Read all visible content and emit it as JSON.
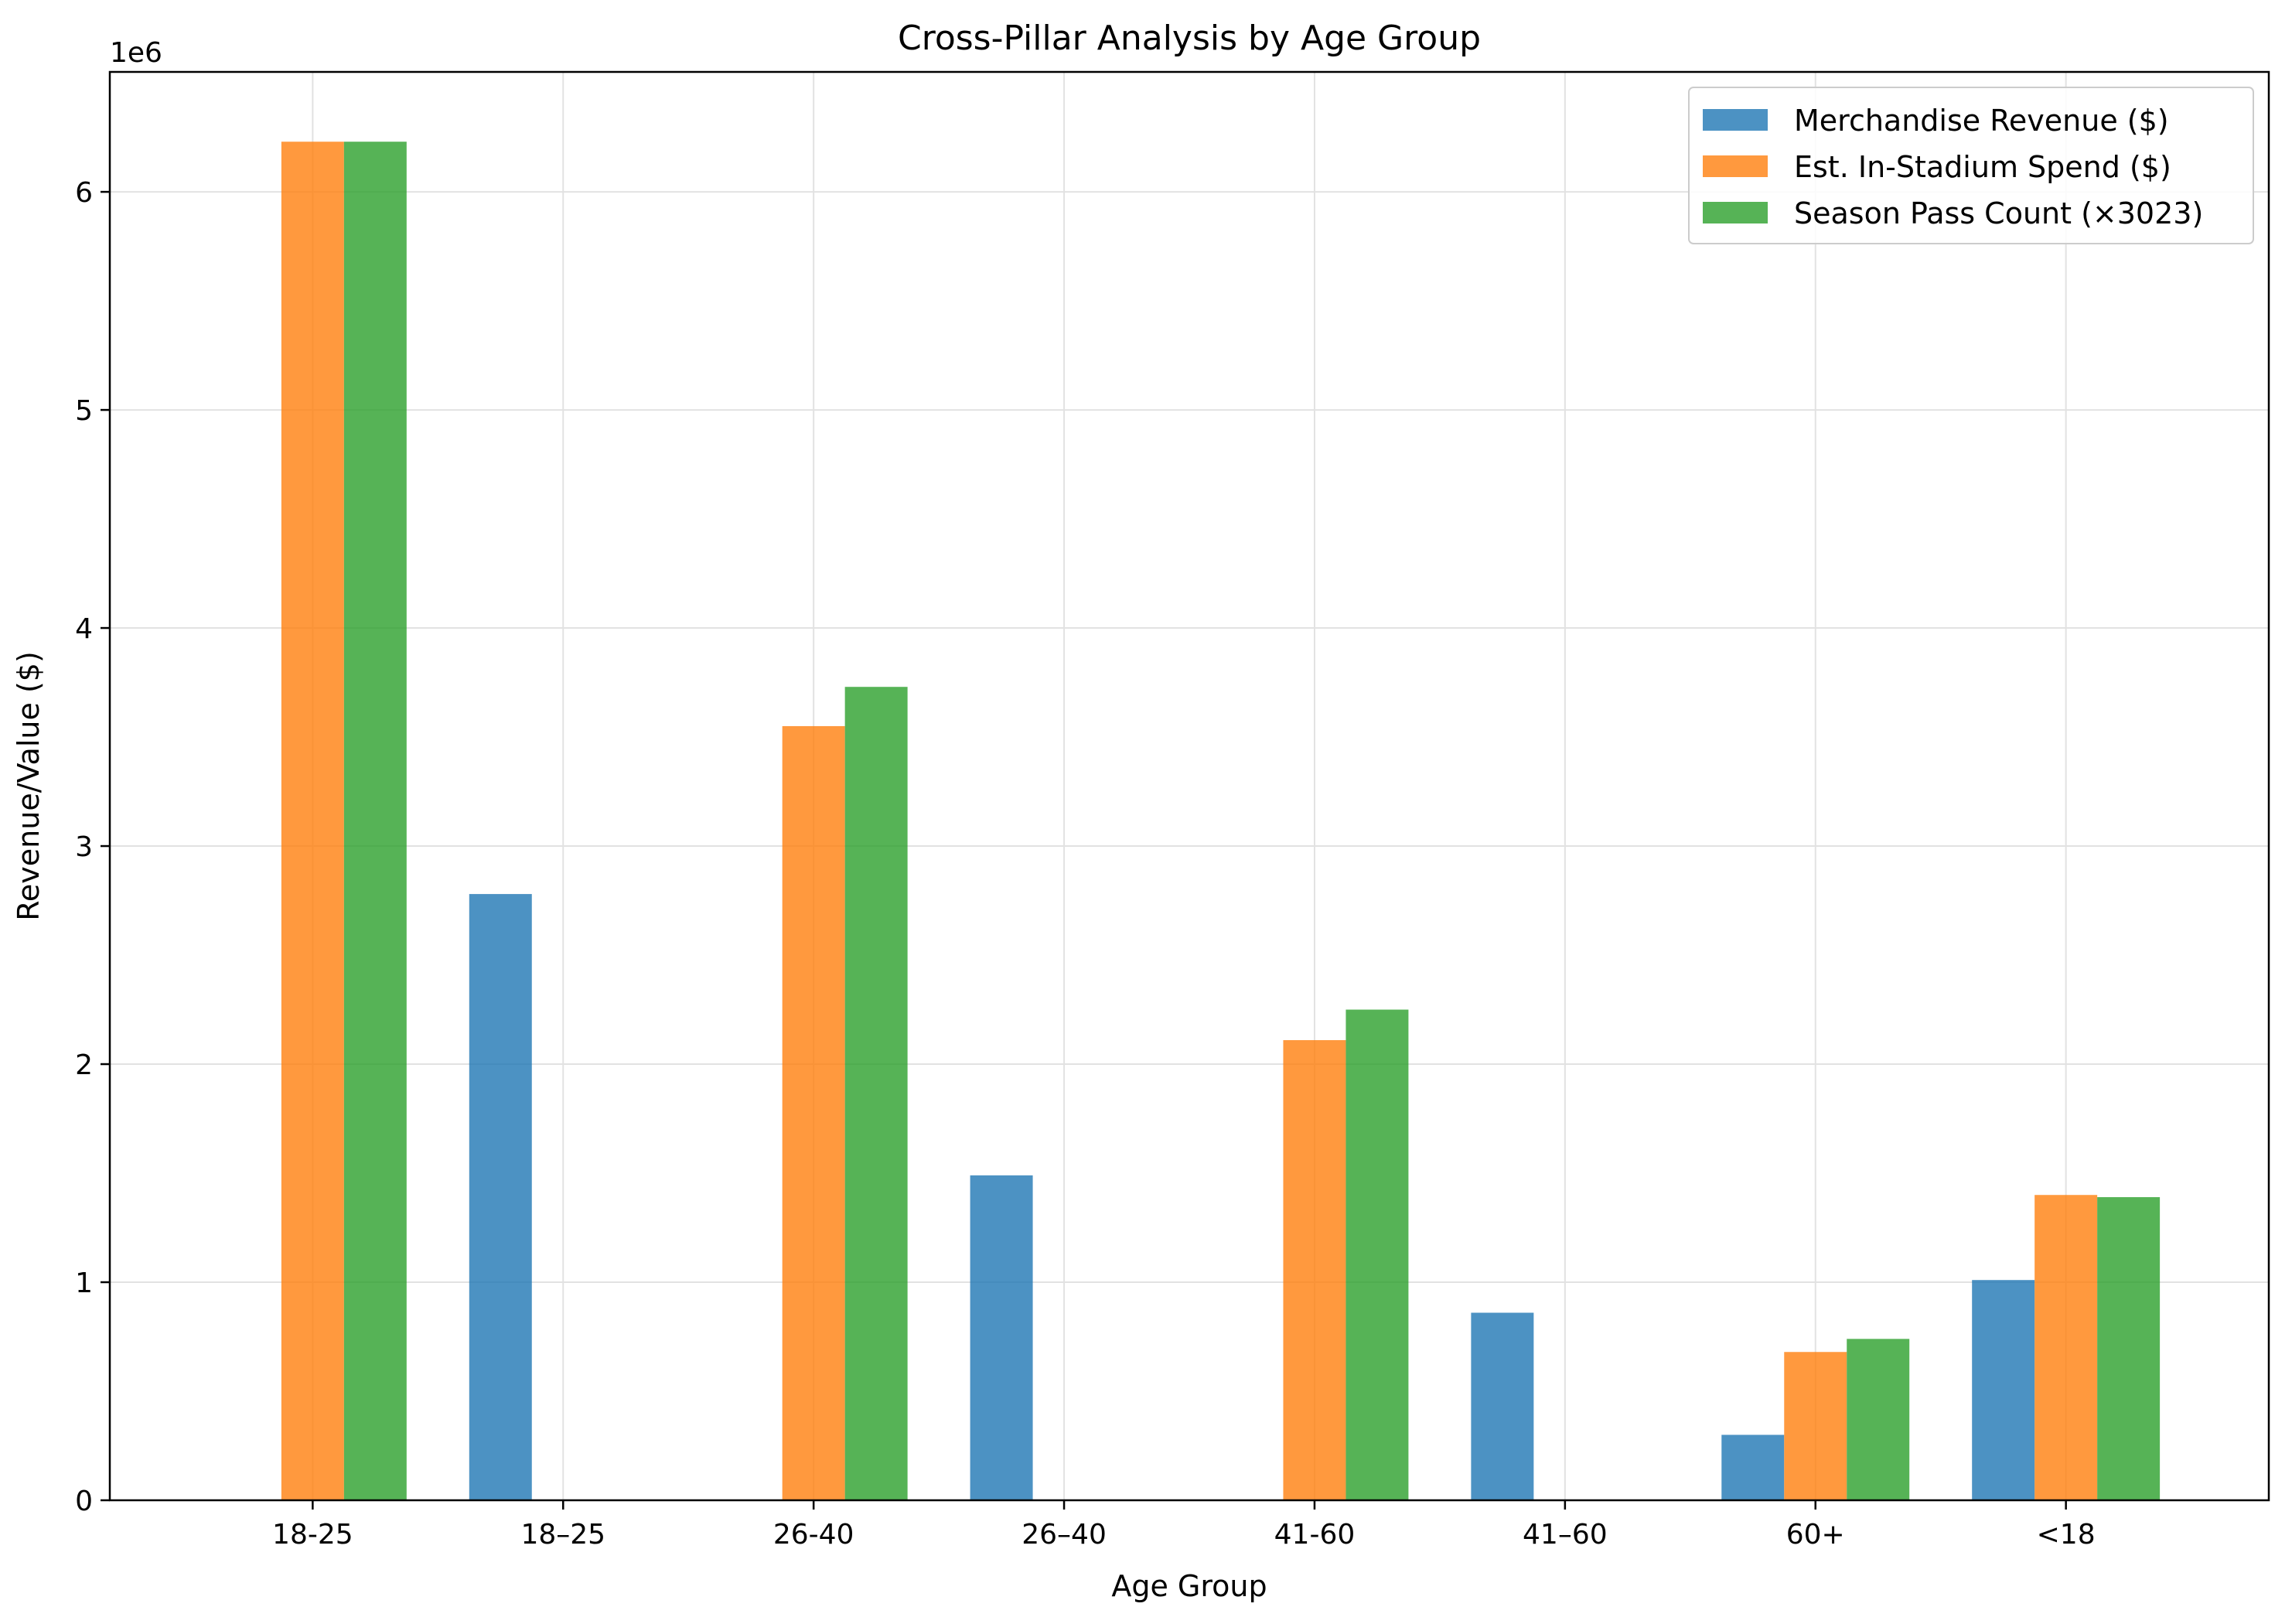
{
  "chart_data": {
    "type": "bar",
    "title": "Cross-Pillar Analysis by Age Group",
    "xlabel": "Age Group",
    "ylabel": "Revenue/Value ($)",
    "y_offset_label": "1e6",
    "y_multiplier": 1000000,
    "ylim": [
      0,
      6.55
    ],
    "y_ticks": [
      0,
      1,
      2,
      3,
      4,
      5,
      6
    ],
    "y_tick_labels": [
      "0",
      "1",
      "2",
      "3",
      "4",
      "5",
      "6"
    ],
    "grid": true,
    "legend_position": "top-right",
    "categories": [
      "18-25",
      "18–25",
      "26-40",
      "26–40",
      "41-60",
      "41–60",
      "60+",
      "<18"
    ],
    "series": [
      {
        "name": "Merchandise Revenue ($)",
        "color": "#1f77b4",
        "values": [
          0,
          2.78,
          0,
          1.49,
          0,
          0.86,
          0.3,
          1.01
        ]
      },
      {
        "name": "Est. In-Stadium Spend ($)",
        "color": "#ff7f0e",
        "values": [
          6.23,
          0,
          3.55,
          0,
          2.11,
          0,
          0.68,
          1.4
        ]
      },
      {
        "name": "Season Pass Count (×3023)",
        "color": "#2ca02c",
        "values": [
          6.23,
          0,
          3.73,
          0,
          2.25,
          0,
          0.74,
          1.39
        ]
      }
    ]
  }
}
